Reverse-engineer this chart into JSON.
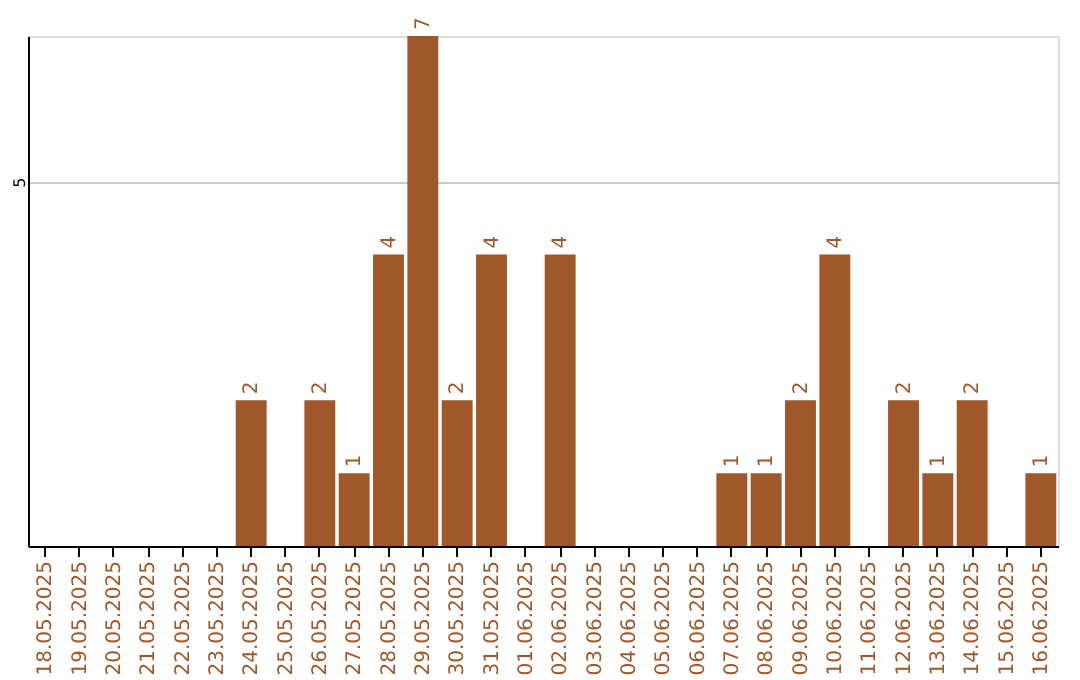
{
  "chart_data": {
    "type": "bar",
    "categories": [
      "18.05.2025",
      "19.05.2025",
      "20.05.2025",
      "21.05.2025",
      "22.05.2025",
      "23.05.2025",
      "24.05.2025",
      "25.05.2025",
      "26.05.2025",
      "27.05.2025",
      "28.05.2025",
      "29.05.2025",
      "30.05.2025",
      "31.05.2025",
      "01.06.2025",
      "02.06.2025",
      "03.06.2025",
      "04.06.2025",
      "05.06.2025",
      "06.06.2025",
      "07.06.2025",
      "08.06.2025",
      "09.06.2025",
      "10.06.2025",
      "11.06.2025",
      "12.06.2025",
      "13.06.2025",
      "14.06.2025",
      "15.06.2025",
      "16.06.2025"
    ],
    "values": [
      0,
      0,
      0,
      0,
      0,
      0,
      2,
      0,
      2,
      1,
      4,
      7,
      2,
      4,
      0,
      4,
      0,
      0,
      0,
      0,
      1,
      1,
      2,
      4,
      0,
      2,
      1,
      2,
      0,
      1
    ],
    "value_labels": [
      null,
      null,
      null,
      null,
      null,
      null,
      "2",
      null,
      "2",
      "1",
      "4",
      "7",
      "2",
      "4",
      null,
      "4",
      null,
      null,
      null,
      null,
      "1",
      "1",
      "2",
      "4",
      null,
      "2",
      "1",
      "2",
      null,
      "1"
    ],
    "color": "#a0572a",
    "ylim": [
      0,
      7
    ],
    "yticks": [
      5
    ],
    "grid": "y"
  }
}
